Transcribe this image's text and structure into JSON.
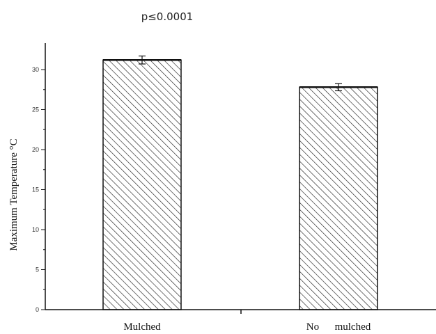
{
  "chart_data": {
    "type": "bar",
    "annotation": "p≤0.0001",
    "title": "",
    "xlabel": "",
    "ylabel": "Maximum Temperature °C",
    "categories": [
      "Mulched",
      "No      mulched"
    ],
    "values": [
      31.2,
      27.8
    ],
    "errors": [
      0.5,
      0.45
    ],
    "ylim": [
      0,
      33
    ],
    "yticks": [
      0,
      5,
      10,
      15,
      20,
      25,
      30
    ],
    "bar_fill": "diagonal-hatch",
    "grid": false,
    "colors": {
      "axis": "#111111",
      "bar_edge": "#111111",
      "hatch": "#222222",
      "background": "#ffffff"
    }
  }
}
